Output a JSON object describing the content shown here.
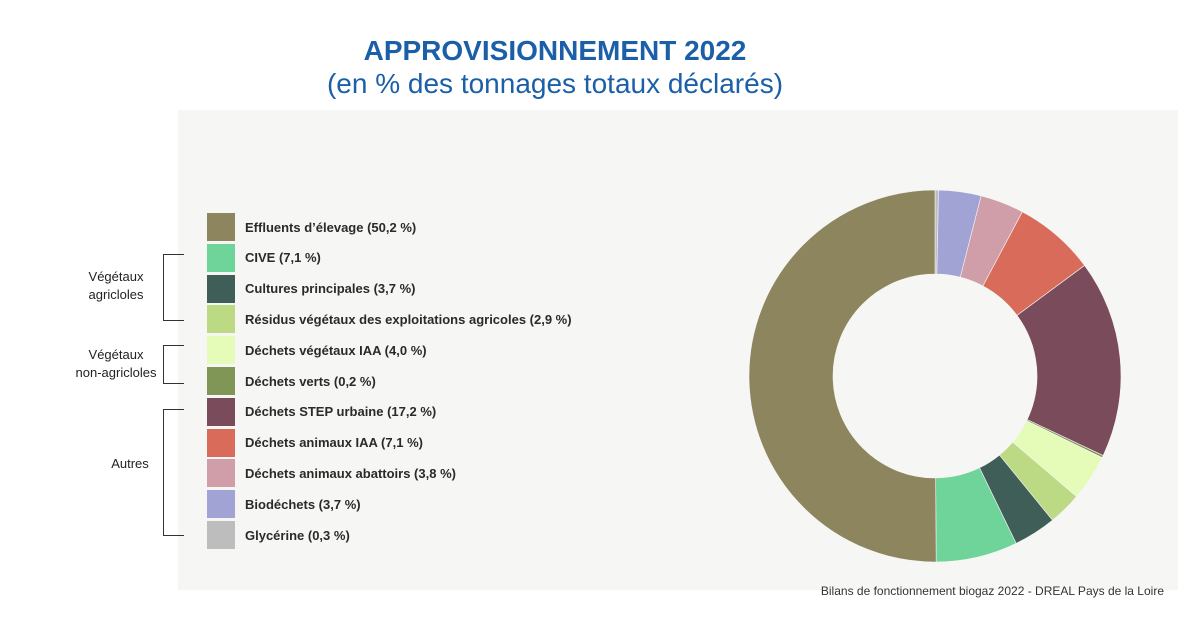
{
  "title": {
    "line1": "APPROVISIONNEMENT 2022",
    "line2": "(en % des tonnages totaux déclarés)"
  },
  "groups": [
    {
      "label_line1": "Végétaux",
      "label_line2": "agricloles"
    },
    {
      "label_line1": "Végétaux",
      "label_line2": "non-agricloles"
    },
    {
      "label_line1": "Autres",
      "label_line2": ""
    }
  ],
  "source": "Bilans de fonctionnement biogaz 2022 - DREAL Pays de la Loire",
  "chart_data": {
    "type": "pie",
    "donut": true,
    "title": "APPROVISIONNEMENT 2022",
    "subtitle": "(en % des tonnages totaux déclarés)",
    "legend_position": "left",
    "slices": [
      {
        "label": "Effluents d’élevage (50,2 %)",
        "value": 50.2,
        "color": "#8c855d"
      },
      {
        "label": "CIVE (7,1 %)",
        "value": 7.1,
        "color": "#6fd49a"
      },
      {
        "label": "Cultures principales (3,7 %)",
        "value": 3.7,
        "color": "#3f5e58"
      },
      {
        "label": "Résidus végétaux des exploitations agricoles (2,9 %)",
        "value": 2.9,
        "color": "#bcd983"
      },
      {
        "label": "Déchets végétaux IAA (4,0 %)",
        "value": 4.0,
        "color": "#e5fbb8"
      },
      {
        "label": "Déchets verts (0,2 %)",
        "value": 0.2,
        "color": "#7f9657"
      },
      {
        "label": "Déchets STEP urbaine (17,2 %)",
        "value": 17.2,
        "color": "#7a4b5a"
      },
      {
        "label": "Déchets animaux IAA (7,1 %)",
        "value": 7.1,
        "color": "#d86b5a"
      },
      {
        "label": "Déchets animaux abattoirs (3,8 %)",
        "value": 3.8,
        "color": "#d09ea8"
      },
      {
        "label": "Biodéchets (3,7 %)",
        "value": 3.7,
        "color": "#a0a3d4"
      },
      {
        "label": "Glycérine (0,3 %)",
        "value": 0.3,
        "color": "#bdbdbd"
      }
    ]
  }
}
